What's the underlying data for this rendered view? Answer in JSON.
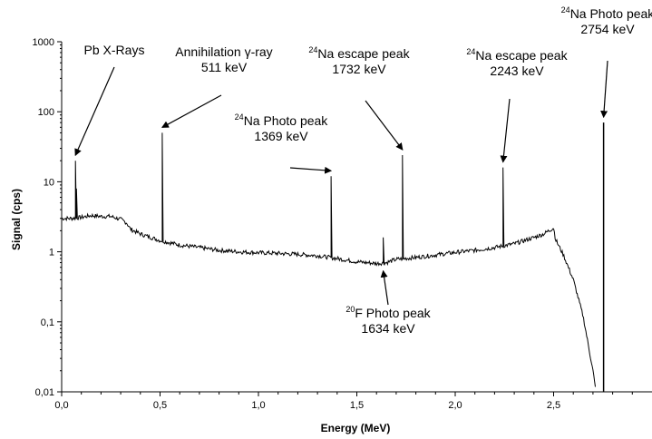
{
  "chart_data": {
    "type": "line",
    "xlabel": "Energy (MeV)",
    "ylabel": "Signal (cps)",
    "xlim": [
      0,
      3.0
    ],
    "ylim": [
      0.01,
      1000
    ],
    "yscale": "log",
    "grid": false,
    "x_ticks": [
      "0,0",
      "0,5",
      "1,0",
      "1,5",
      "2,0",
      "2,5"
    ],
    "x_tick_values": [
      0,
      0.5,
      1.0,
      1.5,
      2.0,
      2.5
    ],
    "y_ticks": [
      "0,01",
      "0,1",
      "1",
      "10",
      "100",
      "1000"
    ],
    "y_tick_values": [
      0.01,
      0.1,
      1,
      10,
      100,
      1000
    ],
    "series": [
      {
        "color": "#000000",
        "continuum": [
          [
            0.0,
            3.0
          ],
          [
            0.05,
            3.0
          ],
          [
            0.1,
            3.1
          ],
          [
            0.15,
            3.3
          ],
          [
            0.2,
            3.2
          ],
          [
            0.25,
            3.2
          ],
          [
            0.3,
            2.9
          ],
          [
            0.33,
            2.6
          ],
          [
            0.35,
            2.1
          ],
          [
            0.4,
            1.8
          ],
          [
            0.5,
            1.45
          ],
          [
            0.6,
            1.25
          ],
          [
            0.7,
            1.15
          ],
          [
            0.8,
            1.05
          ],
          [
            0.9,
            1.0
          ],
          [
            1.0,
            0.97
          ],
          [
            1.1,
            0.95
          ],
          [
            1.2,
            0.92
          ],
          [
            1.3,
            0.88
          ],
          [
            1.4,
            0.8
          ],
          [
            1.5,
            0.72
          ],
          [
            1.6,
            0.68
          ],
          [
            1.65,
            0.7
          ],
          [
            1.7,
            0.78
          ],
          [
            1.8,
            0.83
          ],
          [
            1.9,
            0.9
          ],
          [
            2.0,
            0.98
          ],
          [
            2.1,
            1.05
          ],
          [
            2.2,
            1.15
          ],
          [
            2.3,
            1.3
          ],
          [
            2.4,
            1.6
          ],
          [
            2.45,
            1.8
          ],
          [
            2.5,
            2.2
          ],
          [
            2.51,
            1.5
          ],
          [
            2.55,
            0.9
          ],
          [
            2.6,
            0.4
          ],
          [
            2.65,
            0.12
          ],
          [
            2.7,
            0.02
          ],
          [
            2.715,
            0.01
          ]
        ],
        "peaks": [
          {
            "x": 0.07,
            "y": 20
          },
          {
            "x": 0.075,
            "y": 8
          },
          {
            "x": 0.511,
            "y": 50
          },
          {
            "x": 1.369,
            "y": 12
          },
          {
            "x": 1.634,
            "y": 1.6
          },
          {
            "x": 1.732,
            "y": 24
          },
          {
            "x": 2.243,
            "y": 16
          },
          {
            "x": 2.754,
            "y": 70
          }
        ]
      }
    ],
    "annotations": [
      {
        "lines": [
          {
            "text": "Pb X-Rays"
          }
        ],
        "arrow_to": [
          0.07,
          20
        ]
      },
      {
        "lines": [
          {
            "text": "Annihilation γ-ray"
          },
          {
            "text": "511 keV"
          }
        ],
        "arrow_to": [
          0.511,
          50
        ]
      },
      {
        "lines": [
          {
            "sup": "24",
            "text": "Na Photo peak"
          },
          {
            "text": "1369 keV"
          }
        ],
        "arrow_to": [
          1.369,
          12
        ]
      },
      {
        "lines": [
          {
            "sup": "24",
            "text": "Na escape peak"
          },
          {
            "text": "1732 keV"
          }
        ],
        "arrow_to": [
          1.732,
          24
        ]
      },
      {
        "lines": [
          {
            "sup": "24",
            "text": "Na escape peak"
          },
          {
            "text": "2243 keV"
          }
        ],
        "arrow_to": [
          2.243,
          16
        ]
      },
      {
        "lines": [
          {
            "sup": "24",
            "text": "Na Photo peak"
          },
          {
            "text": "2754 keV"
          }
        ],
        "arrow_to": [
          2.754,
          70
        ]
      },
      {
        "lines": [
          {
            "sup": "20",
            "text": "F Photo peak"
          },
          {
            "text": "1634 keV"
          }
        ],
        "arrow_to": [
          1.634,
          0.6
        ]
      }
    ]
  }
}
